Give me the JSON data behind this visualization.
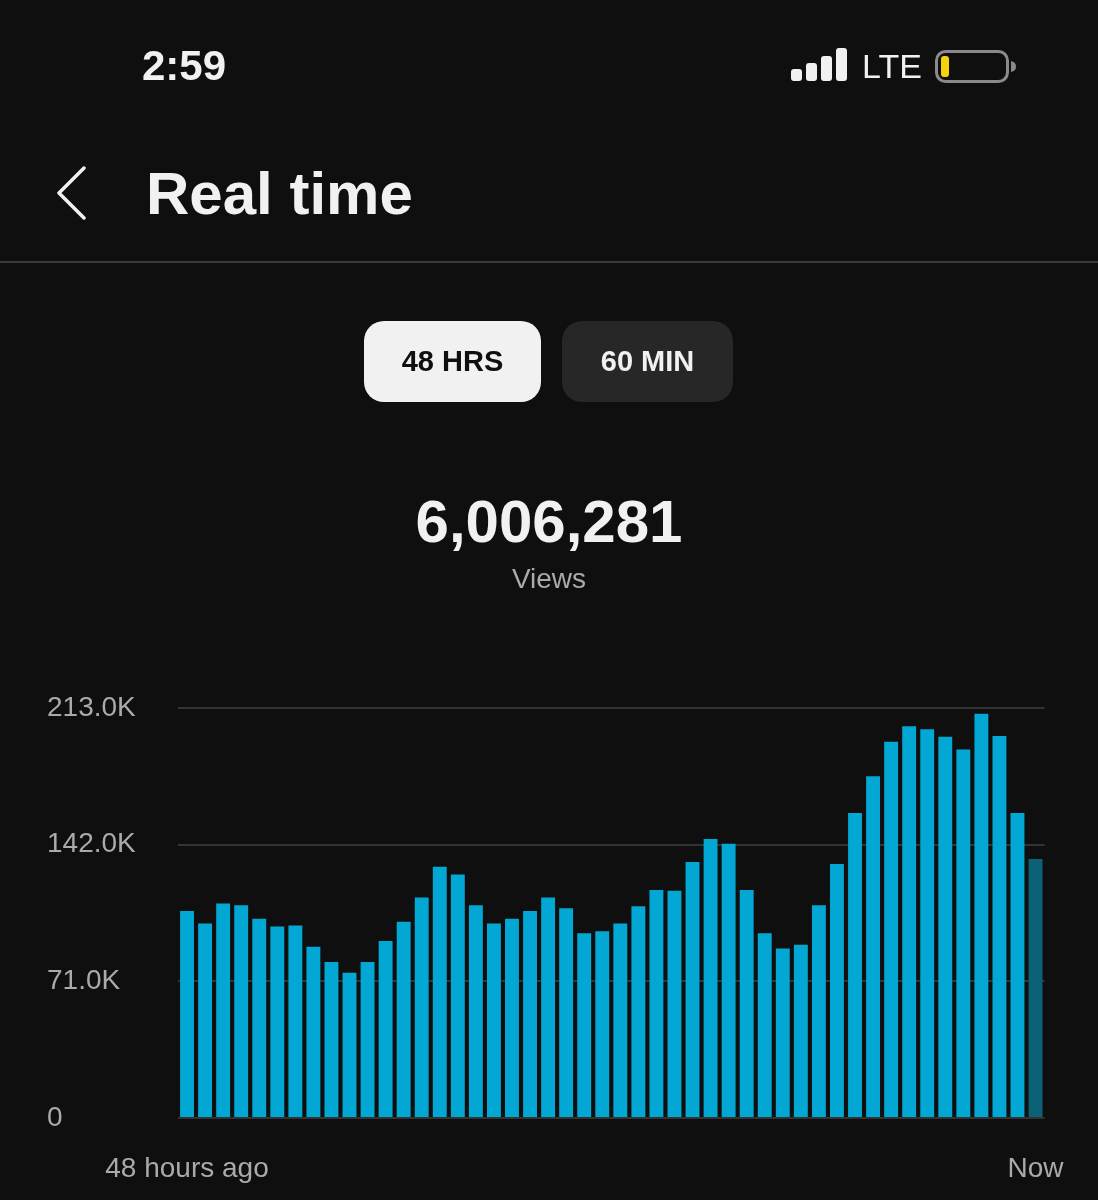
{
  "chart_data": {
    "type": "bar",
    "title": "Real time",
    "annotations": [
      "2:59",
      "LTE",
      "48 HRS",
      "60 MIN",
      "6,006,281",
      "Views"
    ],
    "categories": [
      "48 hours ago",
      null,
      null,
      null,
      null,
      null,
      null,
      null,
      null,
      null,
      null,
      null,
      null,
      null,
      null,
      null,
      null,
      null,
      null,
      null,
      null,
      null,
      null,
      null,
      null,
      null,
      null,
      null,
      null,
      null,
      null,
      null,
      null,
      null,
      null,
      null,
      null,
      null,
      null,
      null,
      null,
      null,
      null,
      null,
      null,
      null,
      null,
      "Now"
    ],
    "values": [
      107500,
      101000,
      111500,
      110500,
      103500,
      99500,
      100000,
      89000,
      81000,
      75500,
      81000,
      92000,
      102000,
      114500,
      130500,
      126500,
      110500,
      101000,
      103500,
      107500,
      114500,
      109000,
      96000,
      97000,
      101000,
      110000,
      118500,
      118000,
      133000,
      145000,
      142500,
      118500,
      96000,
      88000,
      90000,
      110500,
      132000,
      158500,
      177500,
      195500,
      203500,
      202000,
      198000,
      191500,
      210000,
      198500,
      158500,
      134500
    ],
    "colors": [
      "#03a7d3",
      "#03a7d3",
      "#03a7d3",
      "#03a7d3",
      "#03a7d3",
      "#03a7d3",
      "#03a7d3",
      "#03a7d3",
      "#03a7d3",
      "#03a7d3",
      "#03a7d3",
      "#03a7d3",
      "#03a7d3",
      "#03a7d3",
      "#03a7d3",
      "#03a7d3",
      "#03a7d3",
      "#03a7d3",
      "#03a7d3",
      "#03a7d3",
      "#03a7d3",
      "#03a7d3",
      "#03a7d3",
      "#03a7d3",
      "#03a7d3",
      "#03a7d3",
      "#03a7d3",
      "#03a7d3",
      "#03a7d3",
      "#03a7d3",
      "#03a7d3",
      "#03a7d3",
      "#03a7d3",
      "#03a7d3",
      "#03a7d3",
      "#03a7d3",
      "#03a7d3",
      "#03a7d3",
      "#03a7d3",
      "#03a7d3",
      "#03a7d3",
      "#03a7d3",
      "#03a7d3",
      "#03a7d3",
      "#03a7d3",
      "#03a7d3",
      "#03a7d3",
      "#0c6177"
    ],
    "ylim": [
      0,
      213000
    ],
    "yticks": [
      0,
      {
        "value": 71000,
        "label": "71.0K"
      },
      {
        "value": 142000,
        "label": "142.0K"
      },
      {
        "value": 213000,
        "label": "213.0K"
      }
    ],
    "grid": "y"
  }
}
